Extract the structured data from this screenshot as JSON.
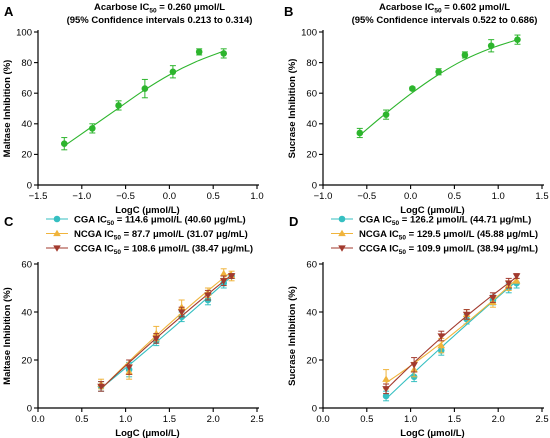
{
  "chart_data": [
    {
      "panel": "A",
      "type": "scatter",
      "title_line1": "Acarbose IC",
      "title_sub": "50",
      "title_rest": " = 0.260 μmol/L",
      "title_line2": "(95% Confidence intervals  0.213 to 0.314)",
      "xlabel": "LogC (μmol/L)",
      "ylabel": "Maltase Inhibition (%)",
      "xlim": [
        -1.5,
        1.0
      ],
      "ylim": [
        0,
        100
      ],
      "xticks": [
        -1.5,
        -1.0,
        -0.5,
        0.0,
        0.5,
        1.0
      ],
      "xticklabels": [
        "−1.5",
        "−1.0",
        "−0.5",
        "0.0",
        "0.5",
        "1.0"
      ],
      "yticks": [
        0,
        20,
        40,
        60,
        80,
        100
      ],
      "yticklabels": [
        "0",
        "20",
        "40",
        "60",
        "80",
        "100"
      ],
      "legend": "none",
      "colors": {
        "series": "#2db52d"
      },
      "series": [
        {
          "marker": "circle",
          "x": [
            -1.2,
            -0.88,
            -0.58,
            -0.28,
            0.04,
            0.34,
            0.62
          ],
          "y": [
            27,
            37,
            52,
            63,
            74,
            87,
            86
          ],
          "err": [
            4,
            3,
            3,
            6,
            4,
            2,
            3
          ],
          "fit_x": [
            -1.2,
            -0.9,
            -0.6,
            -0.3,
            0.0,
            0.3,
            0.62
          ],
          "fit_y": [
            25.5,
            37.5,
            49.5,
            61.5,
            72.0,
            80.5,
            87.5
          ]
        }
      ]
    },
    {
      "panel": "B",
      "type": "scatter",
      "title_line1": "Acarbose IC",
      "title_sub": "50",
      "title_rest": " = 0.602 μmol/L",
      "title_line2": "(95% Confidence intervals  0.522 to 0.686)",
      "xlabel": "LogC (μmol/L)",
      "ylabel": "Sucrase Inhibition (%)",
      "xlim": [
        -1.0,
        1.5
      ],
      "ylim": [
        0,
        100
      ],
      "xticks": [
        -1.0,
        -0.5,
        0.0,
        0.5,
        1.0,
        1.5
      ],
      "xticklabels": [
        "−1.0",
        "−0.5",
        "0.0",
        "0.5",
        "1.0",
        "1.5"
      ],
      "yticks": [
        0,
        20,
        40,
        60,
        80,
        100
      ],
      "yticklabels": [
        "0",
        "20",
        "40",
        "60",
        "80",
        "100"
      ],
      "legend": "none",
      "colors": {
        "series": "#2db52d"
      },
      "series": [
        {
          "marker": "circle",
          "x": [
            -0.58,
            -0.28,
            0.02,
            0.32,
            0.62,
            0.92,
            1.22
          ],
          "y": [
            34,
            46,
            63,
            74,
            85,
            91,
            95
          ],
          "err": [
            3,
            3,
            1,
            2,
            2,
            4,
            3
          ],
          "fit_x": [
            -0.58,
            -0.3,
            0.0,
            0.3,
            0.6,
            0.9,
            1.22
          ],
          "fit_y": [
            32.5,
            46.0,
            59.5,
            71.5,
            81.5,
            89.0,
            95.0
          ]
        }
      ]
    },
    {
      "panel": "C",
      "type": "scatter",
      "xlabel": "LogC (μmol/L)",
      "ylabel": "Maltase Inhibition (%)",
      "xlim": [
        0.0,
        2.5
      ],
      "ylim": [
        0,
        60
      ],
      "xticks": [
        0.0,
        0.5,
        1.0,
        1.5,
        2.0,
        2.5
      ],
      "xticklabels": [
        "0.0",
        "0.5",
        "1.0",
        "1.5",
        "2.0",
        "2.5"
      ],
      "yticks": [
        0,
        20,
        40,
        60
      ],
      "yticklabels": [
        "0",
        "20",
        "40",
        "60"
      ],
      "legend": "top-left",
      "series": [
        {
          "name": "CGA IC",
          "sub": "50",
          "rest": " = 114.6 μmol/L (40.60 μg/mL)",
          "color": "#35bfc1",
          "marker": "circle",
          "x": [
            0.72,
            1.04,
            1.35,
            1.64,
            1.94,
            2.12,
            2.21
          ],
          "y": [
            9,
            16,
            28,
            38,
            45,
            52,
            55
          ],
          "err": [
            2,
            3,
            2,
            2,
            2,
            2,
            1
          ]
        },
        {
          "name": "NCGA IC",
          "sub": "50",
          "rest": " = 87.7 μmol/L (31.07 μg/mL)",
          "color": "#f0b43c",
          "marker": "triangle-up",
          "x": [
            0.72,
            1.04,
            1.35,
            1.64,
            1.94,
            2.12,
            2.21
          ],
          "y": [
            10,
            15,
            31,
            42,
            48,
            56,
            55
          ],
          "err": [
            2,
            3,
            3,
            3,
            2,
            2,
            2
          ]
        },
        {
          "name": "CCGA IC",
          "sub": "50",
          "rest": " = 108.6 μmol/L (38.47 μg/mL)",
          "color": "#a23a2e",
          "marker": "triangle-down",
          "x": [
            0.72,
            1.04,
            1.35,
            1.64,
            1.94,
            2.12,
            2.21
          ],
          "y": [
            9,
            17,
            29,
            40,
            47,
            53,
            55
          ],
          "err": [
            2,
            3,
            2,
            2,
            2,
            2,
            1
          ]
        }
      ]
    },
    {
      "panel": "D",
      "type": "scatter",
      "xlabel": "LogC (μmol/L)",
      "ylabel": "Sucrase Inhibition (%)",
      "xlim": [
        0.0,
        2.5
      ],
      "ylim": [
        0,
        60
      ],
      "xticks": [
        0.0,
        0.5,
        1.0,
        1.5,
        2.0,
        2.5
      ],
      "xticklabels": [
        "0.0",
        "0.5",
        "1.0",
        "1.5",
        "2.0",
        "2.5"
      ],
      "yticks": [
        0,
        20,
        40,
        60
      ],
      "yticklabels": [
        "0",
        "20",
        "40",
        "60"
      ],
      "legend": "top-left",
      "series": [
        {
          "name": "CGA IC",
          "sub": "50",
          "rest": " = 126.2 μmol/L (44.71 μg/mL)",
          "color": "#35bfc1",
          "marker": "circle",
          "x": [
            0.72,
            1.04,
            1.35,
            1.64,
            1.94,
            2.12,
            2.21
          ],
          "y": [
            5,
            13,
            24,
            37,
            45,
            50,
            52
          ],
          "err": [
            2,
            2,
            2,
            2,
            2,
            2,
            2
          ]
        },
        {
          "name": "NCGA IC",
          "sub": "50",
          "rest": " = 129.5 μmol/L (45.88 μg/mL)",
          "color": "#f0b43c",
          "marker": "triangle-up",
          "x": [
            0.72,
            1.04,
            1.35,
            1.64,
            1.94,
            2.12,
            2.21
          ],
          "y": [
            12,
            16,
            26,
            39,
            44,
            51,
            53
          ],
          "err": [
            4,
            3,
            3,
            2,
            2,
            2,
            1
          ]
        },
        {
          "name": "CCGA IC",
          "sub": "50",
          "rest": " = 109.9 μmol/L (38.94 μg/mL)",
          "color": "#a23a2e",
          "marker": "triangle-down",
          "x": [
            0.72,
            1.04,
            1.35,
            1.64,
            1.94,
            2.12,
            2.21
          ],
          "y": [
            8,
            18,
            30,
            39,
            46,
            52,
            55
          ],
          "err": [
            2,
            3,
            2,
            2,
            2,
            2,
            1
          ]
        }
      ]
    }
  ]
}
